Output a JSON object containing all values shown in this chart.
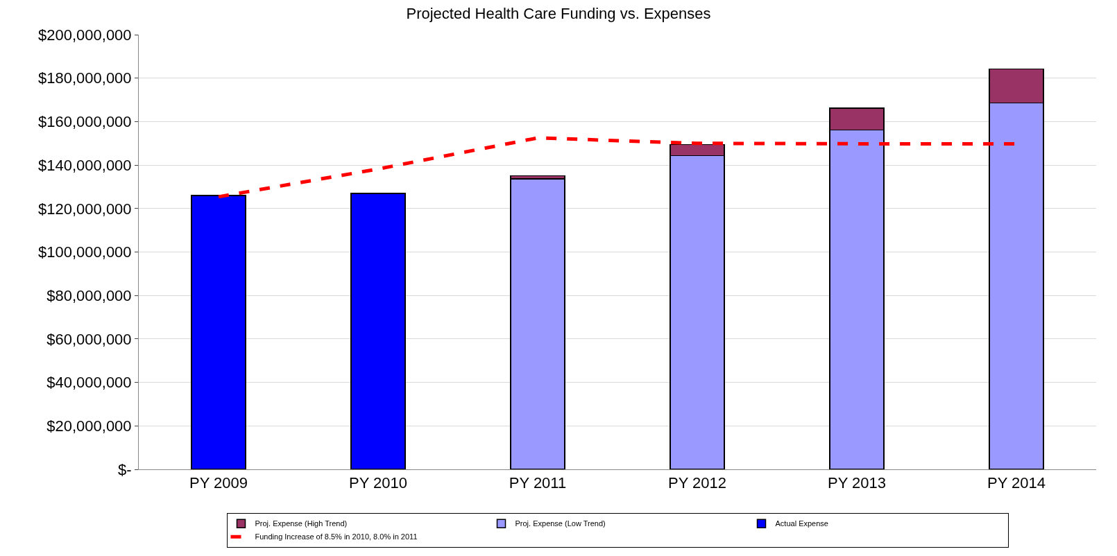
{
  "chart_data": {
    "type": "bar",
    "title": "Projected Health Care Funding vs. Expenses",
    "stacked": true,
    "categories": [
      "PY 2009",
      "PY 2010",
      "PY 2011",
      "PY 2012",
      "PY 2013",
      "PY 2014"
    ],
    "series": [
      {
        "name": "Actual Expense",
        "color": "#0000ff",
        "values": [
          126000000,
          127000000,
          null,
          null,
          null,
          null
        ]
      },
      {
        "name": "Proj. Expense (Low Trend)",
        "color": "#9999ff",
        "values": [
          null,
          null,
          133600000,
          144300000,
          156200000,
          168600000
        ]
      },
      {
        "name": "Proj. Expense (High Trend)",
        "color": "#993366",
        "values": [
          null,
          null,
          1500000,
          5200000,
          10000000,
          15600000
        ]
      },
      {
        "name": "Funding Increase of 8.5% in 2010, 8.0% in 2011",
        "type": "line",
        "color": "#ff0000",
        "line_style": "dashed",
        "marker": "none",
        "values": [
          125400000,
          138200000,
          152500000,
          150000000,
          149800000,
          149800000
        ]
      }
    ],
    "ylim": [
      0,
      200000000
    ],
    "yticks": [
      {
        "value": 0,
        "label": "$-"
      },
      {
        "value": 20000000,
        "label": "$20,000,000"
      },
      {
        "value": 40000000,
        "label": "$40,000,000"
      },
      {
        "value": 60000000,
        "label": "$60,000,000"
      },
      {
        "value": 80000000,
        "label": "$80,000,000"
      },
      {
        "value": 100000000,
        "label": "$100,000,000"
      },
      {
        "value": 120000000,
        "label": "$120,000,000"
      },
      {
        "value": 140000000,
        "label": "$140,000,000"
      },
      {
        "value": 160000000,
        "label": "$160,000,000"
      },
      {
        "value": 180000000,
        "label": "$180,000,000"
      },
      {
        "value": 200000000,
        "label": "$200,000,000"
      }
    ],
    "grid": "y",
    "legend": "bottom"
  }
}
